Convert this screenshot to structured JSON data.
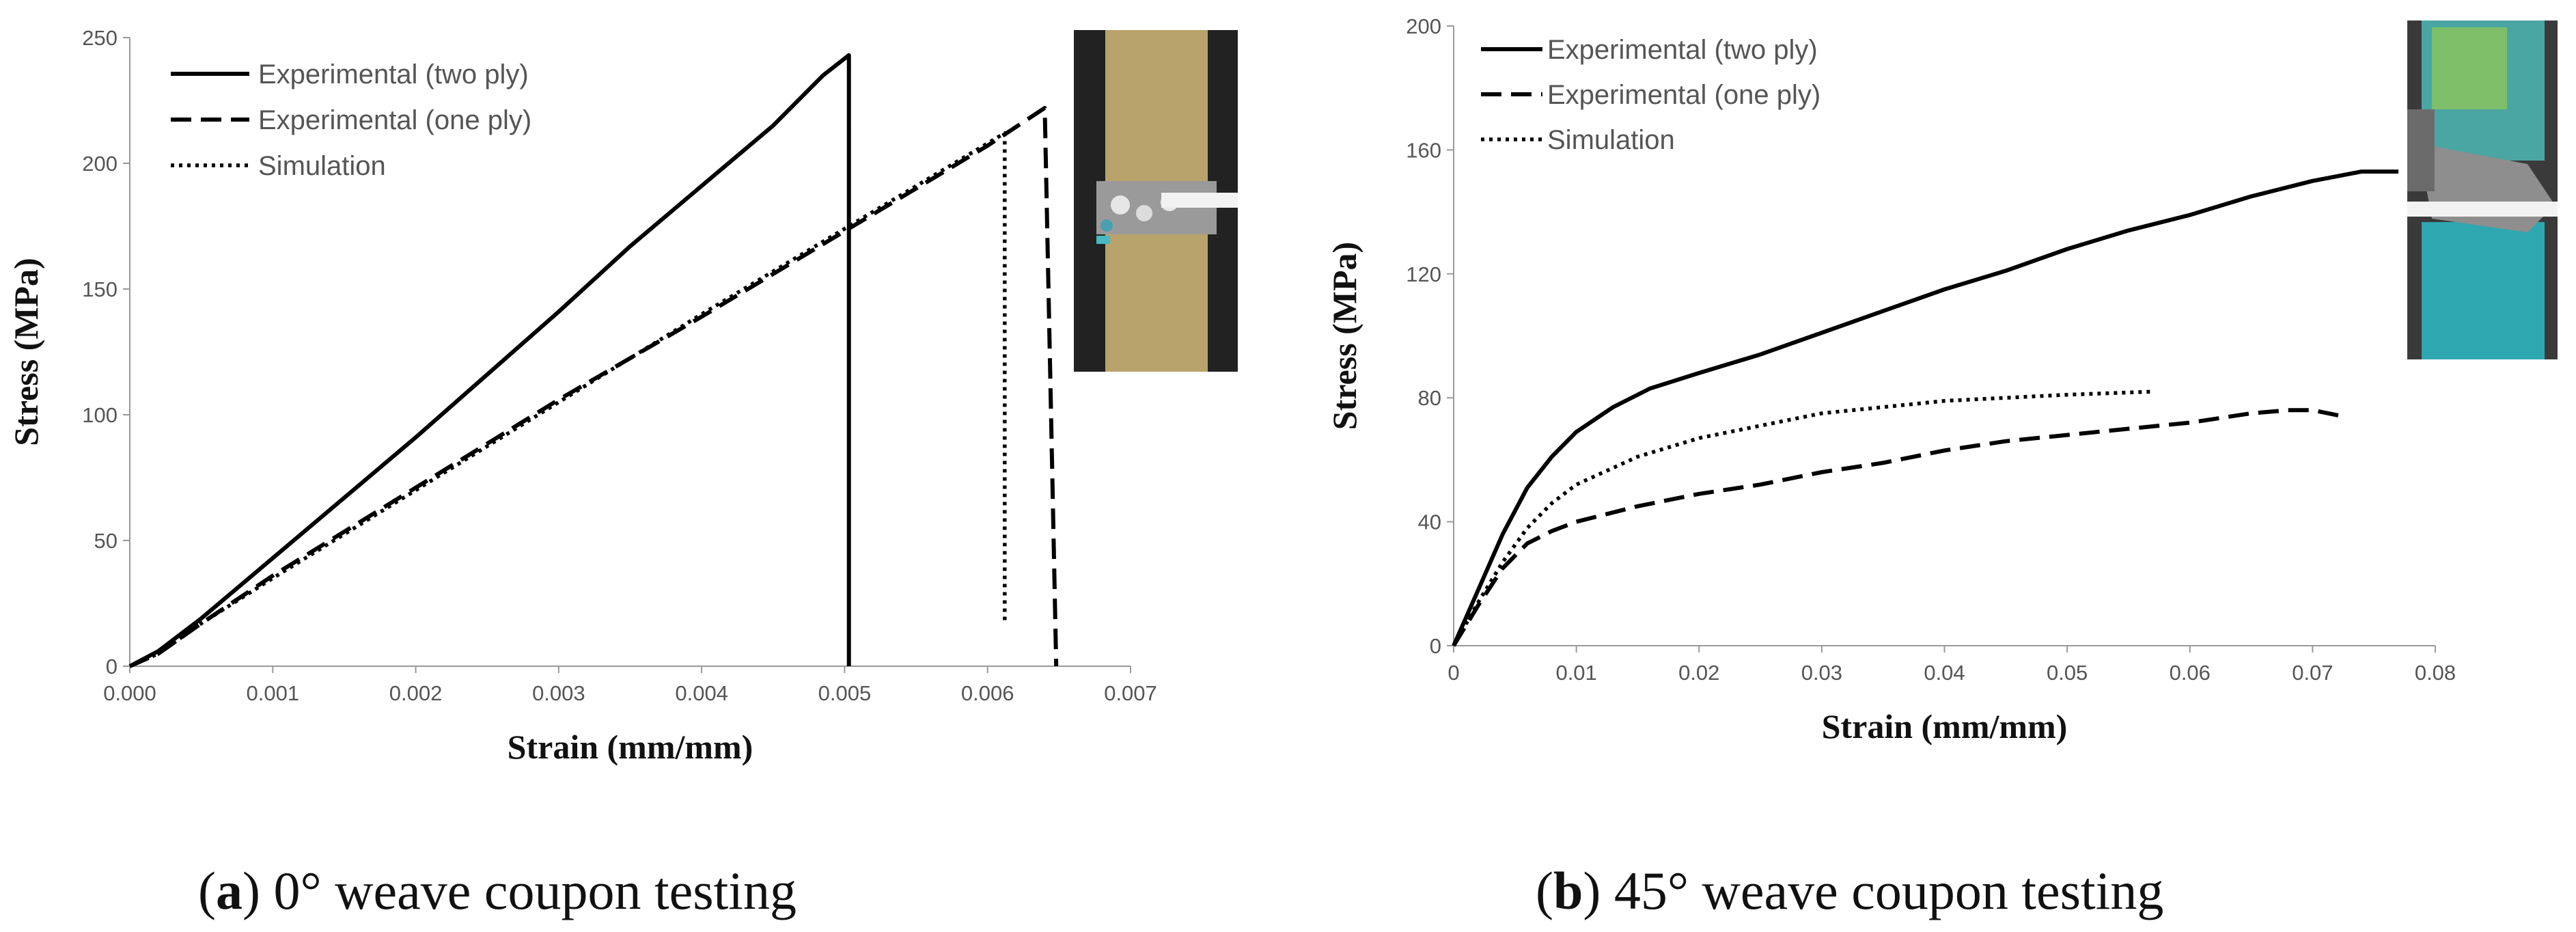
{
  "chart_data": [
    {
      "type": "line",
      "panel": "a",
      "caption": {
        "letter": "a",
        "text": "0° weave coupon testing"
      },
      "xlabel": "Strain (mm/mm)",
      "ylabel": "Stress (MPa)",
      "xlim": [
        0,
        0.007
      ],
      "ylim": [
        0,
        250
      ],
      "x_ticks": [
        "0.000",
        "0.001",
        "0.002",
        "0.003",
        "0.004",
        "0.005",
        "0.006",
        "0.007"
      ],
      "y_ticks": [
        "0",
        "50",
        "100",
        "150",
        "200",
        "250"
      ],
      "grid": false,
      "legend_position": "top-left",
      "series": [
        {
          "name": "Experimental (two ply)",
          "style": "solid",
          "points": [
            [
              0,
              0
            ],
            [
              0.0002,
              6
            ],
            [
              0.0005,
              19
            ],
            [
              0.001,
              43
            ],
            [
              0.002,
              91
            ],
            [
              0.003,
              141
            ],
            [
              0.0035,
              167
            ],
            [
              0.004,
              191
            ],
            [
              0.0045,
              215
            ],
            [
              0.00485,
              235
            ],
            [
              0.00503,
              243
            ],
            [
              0.00503,
              0
            ]
          ]
        },
        {
          "name": "Experimental (one ply)",
          "style": "dashed",
          "points": [
            [
              0,
              0
            ],
            [
              0.0002,
              5
            ],
            [
              0.0005,
              17
            ],
            [
              0.001,
              36
            ],
            [
              0.002,
              71
            ],
            [
              0.003,
              106
            ],
            [
              0.004,
              139
            ],
            [
              0.005,
              173
            ],
            [
              0.0055,
              190
            ],
            [
              0.006,
              207
            ],
            [
              0.0064,
              222
            ],
            [
              0.00648,
              0
            ]
          ]
        },
        {
          "name": "Simulation",
          "style": "dotted",
          "points": [
            [
              0,
              0
            ],
            [
              0.0002,
              5
            ],
            [
              0.0005,
              17
            ],
            [
              0.001,
              35
            ],
            [
              0.002,
              70
            ],
            [
              0.003,
              105
            ],
            [
              0.004,
              140
            ],
            [
              0.0045,
              157
            ],
            [
              0.00612,
              212
            ],
            [
              0.00612,
              18
            ]
          ]
        }
      ]
    },
    {
      "type": "line",
      "panel": "b",
      "caption": {
        "letter": "b",
        "text": "45° weave coupon testing"
      },
      "xlabel": "Strain (mm/mm)",
      "ylabel": "Stress (MPa)",
      "xlim": [
        0,
        0.08
      ],
      "ylim": [
        0,
        200
      ],
      "x_ticks": [
        "0",
        "0.01",
        "0.02",
        "0.03",
        "0.04",
        "0.05",
        "0.06",
        "0.07",
        "0.08"
      ],
      "y_ticks": [
        "0",
        "40",
        "80",
        "120",
        "160",
        "200"
      ],
      "grid": false,
      "legend_position": "top-left",
      "series": [
        {
          "name": "Experimental (two ply)",
          "style": "solid",
          "points": [
            [
              0,
              0
            ],
            [
              0.002,
              18
            ],
            [
              0.004,
              36
            ],
            [
              0.006,
              51
            ],
            [
              0.008,
              61
            ],
            [
              0.01,
              69
            ],
            [
              0.013,
              77
            ],
            [
              0.016,
              83
            ],
            [
              0.02,
              88
            ],
            [
              0.025,
              94
            ],
            [
              0.03,
              101
            ],
            [
              0.035,
              108
            ],
            [
              0.04,
              115
            ],
            [
              0.045,
              121
            ],
            [
              0.05,
              128
            ],
            [
              0.055,
              134
            ],
            [
              0.06,
              139
            ],
            [
              0.065,
              145
            ],
            [
              0.07,
              150
            ],
            [
              0.074,
              153
            ],
            [
              0.077,
              153
            ]
          ]
        },
        {
          "name": "Experimental (one ply)",
          "style": "dashed",
          "points": [
            [
              0,
              0
            ],
            [
              0.002,
              13
            ],
            [
              0.004,
              25
            ],
            [
              0.006,
              33
            ],
            [
              0.008,
              37
            ],
            [
              0.01,
              40
            ],
            [
              0.015,
              45
            ],
            [
              0.02,
              49
            ],
            [
              0.025,
              52
            ],
            [
              0.03,
              56
            ],
            [
              0.035,
              59
            ],
            [
              0.04,
              63
            ],
            [
              0.045,
              66
            ],
            [
              0.05,
              68
            ],
            [
              0.055,
              70
            ],
            [
              0.06,
              72
            ],
            [
              0.065,
              75
            ],
            [
              0.068,
              76
            ],
            [
              0.07,
              76
            ],
            [
              0.0725,
              74
            ]
          ]
        },
        {
          "name": "Simulation",
          "style": "dotted",
          "points": [
            [
              0,
              0
            ],
            [
              0.002,
              14
            ],
            [
              0.004,
              27
            ],
            [
              0.006,
              38
            ],
            [
              0.008,
              46
            ],
            [
              0.01,
              52
            ],
            [
              0.015,
              61
            ],
            [
              0.02,
              67
            ],
            [
              0.025,
              71
            ],
            [
              0.03,
              75
            ],
            [
              0.035,
              77
            ],
            [
              0.04,
              79
            ],
            [
              0.045,
              80
            ],
            [
              0.05,
              81
            ],
            [
              0.057,
              82
            ]
          ]
        }
      ]
    }
  ]
}
